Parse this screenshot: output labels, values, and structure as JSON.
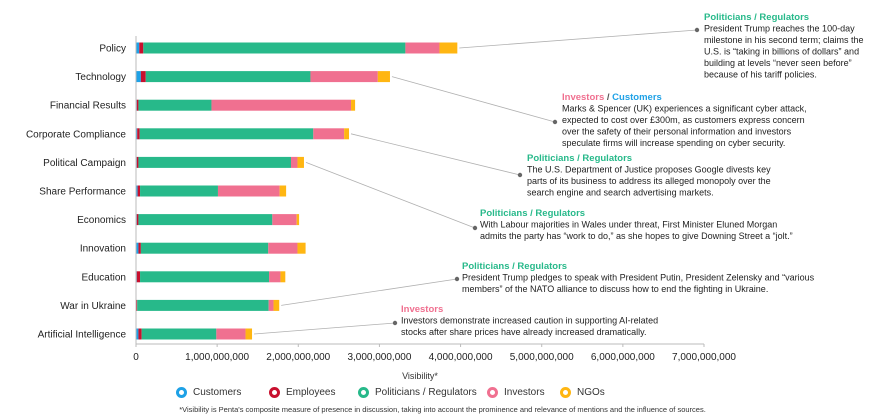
{
  "chart_data": {
    "type": "bar",
    "orientation": "horizontal",
    "stacked": true,
    "categories": [
      "Policy",
      "Technology",
      "Financial Results",
      "Corporate Compliance",
      "Political Campaign",
      "Share Performance",
      "Economics",
      "Innovation",
      "Education",
      "War in Ukraine",
      "Artificial Intelligence"
    ],
    "series": [
      {
        "name": "Customers",
        "color": "#1ea1e6",
        "values": [
          40000000,
          60000000,
          10000000,
          15000000,
          10000000,
          20000000,
          10000000,
          30000000,
          10000000,
          5000000,
          30000000
        ]
      },
      {
        "name": "Employees",
        "color": "#c8102e",
        "values": [
          50000000,
          60000000,
          20000000,
          30000000,
          20000000,
          30000000,
          20000000,
          30000000,
          40000000,
          10000000,
          40000000
        ]
      },
      {
        "name": "Politicians / Regulators",
        "color": "#27b98a",
        "values": [
          3230000000,
          2030000000,
          900000000,
          2140000000,
          1880000000,
          960000000,
          1650000000,
          1570000000,
          1590000000,
          1620000000,
          920000000
        ]
      },
      {
        "name": "Investors",
        "color": "#f07090",
        "values": [
          420000000,
          830000000,
          1720000000,
          380000000,
          80000000,
          760000000,
          300000000,
          360000000,
          140000000,
          60000000,
          360000000
        ]
      },
      {
        "name": "NGOs",
        "color": "#ffb612",
        "values": [
          220000000,
          150000000,
          50000000,
          60000000,
          80000000,
          80000000,
          30000000,
          100000000,
          60000000,
          70000000,
          80000000
        ]
      }
    ],
    "xlabel": "Visibility*",
    "xlim": [
      0,
      7000000000
    ],
    "xticks": [
      0,
      1000000000,
      2000000000,
      3000000000,
      4000000000,
      5000000000,
      6000000000,
      7000000000
    ],
    "xtick_labels": [
      "0",
      "1,000,000,000",
      "2,000,000,000",
      "3,000,000,000",
      "4,000,000,000",
      "5,000,000,000",
      "6,000,000,000",
      "7,000,000,000"
    ],
    "grid": false,
    "legend_position": "bottom"
  },
  "annotations": [
    {
      "title": "Politicians / Regulators",
      "title_color": "#27b98a",
      "text": [
        "President Trump reaches the 100-day",
        "milestone in his second term; claims the",
        "U.S. is “taking in billions of dollars” and",
        "building at levels “never seen before”",
        "because of his tariff policies."
      ],
      "category": "Policy"
    },
    {
      "title_parts": [
        {
          "t": "Investors",
          "c": "#f07090"
        },
        {
          "t": " / ",
          "c": "#555555"
        },
        {
          "t": "Customers",
          "c": "#1ea1e6"
        }
      ],
      "text": [
        "Marks & Spencer (UK) experiences a significant cyber attack,",
        "expected to cost over £300m, as customers express concern",
        "over the safety of their personal information and investors",
        "speculate firms will increase spending on cyber security."
      ],
      "category": "Technology"
    },
    {
      "title": "Politicians / Regulators",
      "title_color": "#27b98a",
      "text": [
        "The U.S. Department of Justice proposes Google divests key",
        "parts of its business to address its alleged monopoly over the",
        "search engine and search advertising markets."
      ],
      "category": "Corporate Compliance"
    },
    {
      "title": "Politicians / Regulators",
      "title_color": "#27b98a",
      "text": [
        "With Labour majorities in Wales under threat, First Minister Eluned Morgan",
        "admits the party has “work to do,” as she hopes to give Downing Street a “jolt.”"
      ],
      "category": "Political Campaign"
    },
    {
      "title": "Politicians / Regulators",
      "title_color": "#27b98a",
      "text": [
        "President Trump pledges to speak with President Putin, President Zelensky and “various",
        "members” of the NATO alliance to discuss how to end the fighting in Ukraine."
      ],
      "category": "War in Ukraine"
    },
    {
      "title": "Investors",
      "title_color": "#f07090",
      "text": [
        "Investors demonstrate increased caution in supporting AI-related",
        "stocks after share prices have already increased dramatically."
      ],
      "category": "Artificial Intelligence"
    }
  ],
  "legend": [
    {
      "label": "Customers",
      "color": "#1ea1e6"
    },
    {
      "label": "Employees",
      "color": "#c8102e"
    },
    {
      "label": "Politicians / Regulators",
      "color": "#27b98a"
    },
    {
      "label": "Investors",
      "color": "#f07090"
    },
    {
      "label": "NGOs",
      "color": "#ffb612"
    }
  ],
  "footnote": "*Visibility is Penta's composite measure of presence in discussion, taking into account the prominence and relevance of mentions and the influence of sources."
}
